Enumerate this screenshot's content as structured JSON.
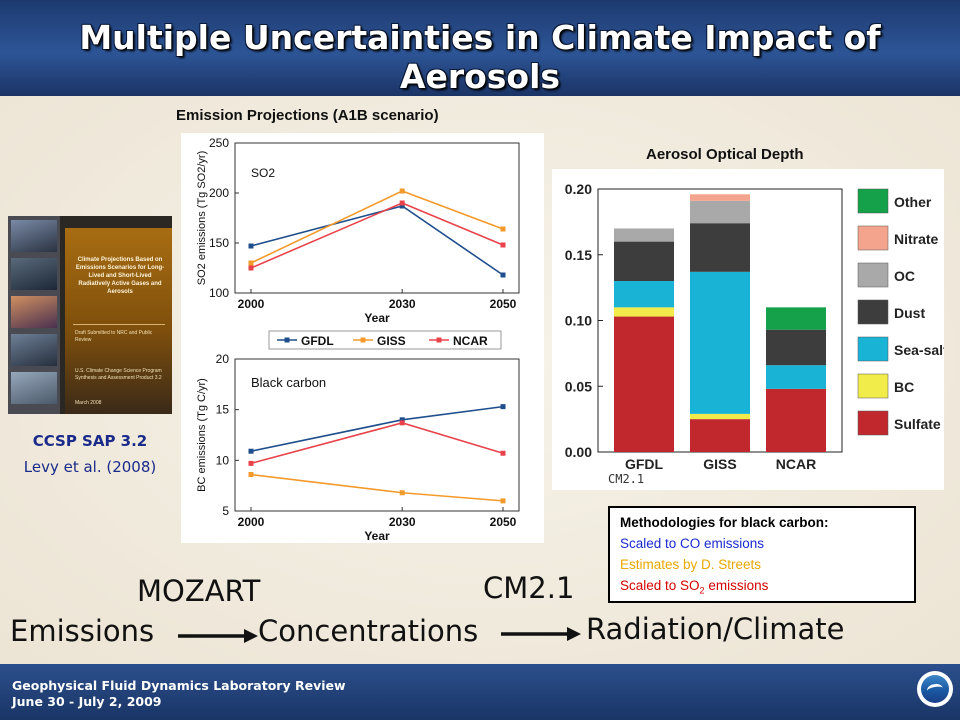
{
  "slide": {
    "title": "Multiple Uncertainties in Climate Impact of Aerosols",
    "report_caption_1": "CCSP  SAP  3.2",
    "report_caption_2": "Levy et al. (2008)",
    "book_title": "Climate Projections Based on Emissions Scenarios for Long-Lived and Short-Lived Radiatively Active Gases and Aerosols",
    "book_sub_1": "Draft Submitted to NRC and Public Review",
    "book_sub_2": "U.S. Climate Change Science Program Synthesis and Assessment Product 3.2",
    "book_sub_3": "March 2008",
    "emission_heading": "Emission Projections (A1B scenario)",
    "aod_heading": "Aerosol Optical Depth",
    "cm21_label": "CM2.1",
    "flow": {
      "mozart": "MOZART",
      "cm21": "CM2.1",
      "emissions": "Emissions",
      "concentrations": "Concentrations",
      "radiation": "Radiation/Climate"
    },
    "methodologies": {
      "title": "Methodologies for black carbon:",
      "line1": "Scaled to CO emissions",
      "line2": "Estimates by D. Streets",
      "line3_prefix": "Scaled to SO",
      "line3_sub": "2",
      "line3_suffix": " emissions",
      "colors": {
        "line1": "#1a2ad0",
        "line2": "#e8a800",
        "line3": "#d40000"
      }
    },
    "footer": {
      "line1": "Geophysical Fluid Dynamics Laboratory Review",
      "line2": "June 30 - July 2, 2009"
    },
    "logo_icon": "noaa-logo"
  },
  "chart_data": [
    {
      "type": "line",
      "panel_label": "SO2",
      "ylabel": "SO2 emissions (Tg SO2/yr)",
      "xlabel": "Year",
      "x": [
        2000,
        2030,
        2050
      ],
      "ylim": [
        100,
        250
      ],
      "yticks": [
        100,
        150,
        200,
        250
      ],
      "series": [
        {
          "name": "GFDL",
          "values": [
            147,
            187,
            118
          ],
          "color": "#1f4e8c"
        },
        {
          "name": "GISS",
          "values": [
            130,
            202,
            164
          ],
          "color": "#f39a2b"
        },
        {
          "name": "NCAR",
          "values": [
            125,
            190,
            148
          ],
          "color": "#e8434a"
        }
      ]
    },
    {
      "type": "line",
      "panel_label": "Black carbon",
      "ylabel": "BC emissions (Tg C/yr)",
      "xlabel": "Year",
      "x": [
        2000,
        2030,
        2050
      ],
      "ylim": [
        5,
        20
      ],
      "yticks": [
        5,
        10,
        15,
        20
      ],
      "series": [
        {
          "name": "GFDL",
          "values": [
            10.9,
            14.0,
            15.3
          ],
          "color": "#1f4e8c"
        },
        {
          "name": "GISS",
          "values": [
            8.6,
            6.8,
            6.0
          ],
          "color": "#f39a2b"
        },
        {
          "name": "NCAR",
          "values": [
            9.7,
            13.7,
            10.7
          ],
          "color": "#e8434a"
        }
      ]
    },
    {
      "type": "bar",
      "stacked": true,
      "categories": [
        "GFDL",
        "GISS",
        "NCAR"
      ],
      "ylim": [
        0,
        0.2
      ],
      "yticks": [
        "0.00",
        "0.05",
        "0.10",
        "0.15",
        "0.20"
      ],
      "series": [
        {
          "name": "Sulfate",
          "values": [
            0.103,
            0.025,
            0.048
          ],
          "color": "#c0282e"
        },
        {
          "name": "BC",
          "values": [
            0.007,
            0.004,
            0.0
          ],
          "color": "#f2ec4a"
        },
        {
          "name": "Sea-salt",
          "values": [
            0.02,
            0.108,
            0.018
          ],
          "color": "#19b3d6"
        },
        {
          "name": "Dust",
          "values": [
            0.03,
            0.037,
            0.027
          ],
          "color": "#3d3d3d"
        },
        {
          "name": "OC",
          "values": [
            0.01,
            0.017,
            0.0
          ],
          "color": "#a9a9a9"
        },
        {
          "name": "Nitrate",
          "values": [
            0.0,
            0.005,
            0.0
          ],
          "color": "#f4a48c"
        },
        {
          "name": "Other",
          "values": [
            0.0,
            0.0,
            0.017
          ],
          "color": "#14a14a"
        }
      ]
    }
  ]
}
